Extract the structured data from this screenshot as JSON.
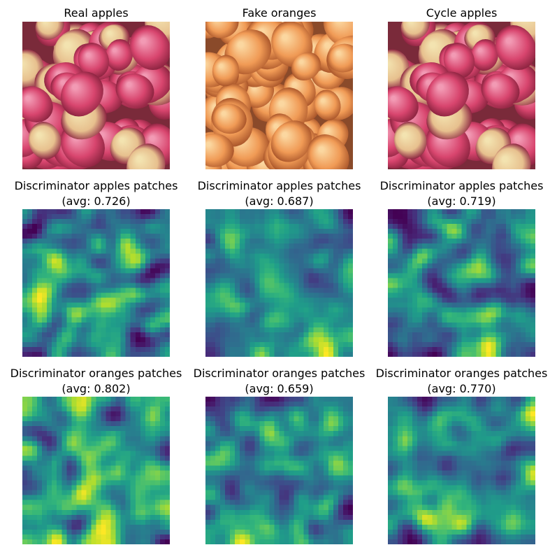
{
  "figure": {
    "rows": [
      {
        "kind": "photo",
        "panels": [
          {
            "title": "Real apples",
            "subtitle": "",
            "palette": "apple",
            "icon": "apples-photo"
          },
          {
            "title": "Fake oranges",
            "subtitle": "",
            "palette": "orange",
            "icon": "orange-tinted-apples-photo"
          },
          {
            "title": "Cycle apples",
            "subtitle": "",
            "palette": "apple",
            "icon": "apples-photo"
          }
        ]
      },
      {
        "kind": "heatmap",
        "panels": [
          {
            "title": "Discriminator apples patches",
            "subtitle": "(avg: 0.726)",
            "avg": 0.726,
            "seed": 11
          },
          {
            "title": "Discriminator apples patches",
            "subtitle": "(avg: 0.687)",
            "avg": 0.687,
            "seed": 23
          },
          {
            "title": "Discriminator apples patches",
            "subtitle": "(avg: 0.719)",
            "avg": 0.719,
            "seed": 37
          }
        ]
      },
      {
        "kind": "heatmap",
        "panels": [
          {
            "title": "Discriminator oranges patches",
            "subtitle": "(avg: 0.802)",
            "avg": 0.802,
            "seed": 41
          },
          {
            "title": "Discriminator oranges patches",
            "subtitle": "(avg: 0.659)",
            "avg": 0.659,
            "seed": 53
          },
          {
            "title": "Discriminator oranges patches",
            "subtitle": "(avg: 0.770)",
            "avg": 0.77,
            "seed": 67
          }
        ]
      }
    ],
    "colormap": "viridis"
  }
}
